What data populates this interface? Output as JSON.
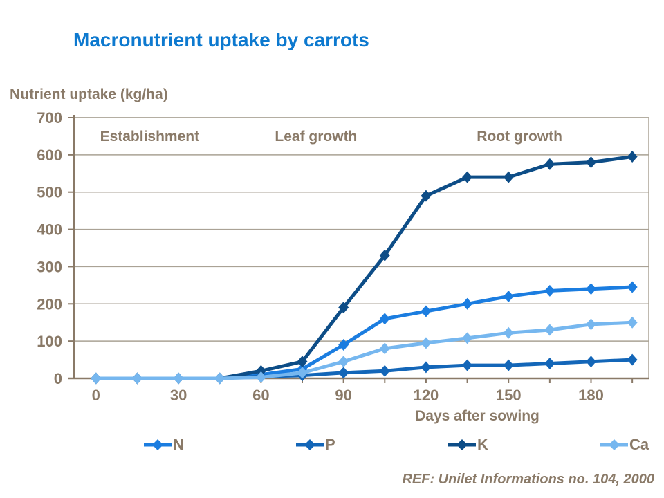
{
  "page": {
    "title": "Macronutrient uptake by carrots",
    "reference": "REF: Unilet Informations no. 104, 2000"
  },
  "chart_data": {
    "type": "line",
    "title": "Macronutrient uptake by carrots",
    "y_axis_title": "Nutrient uptake (kg/ha)",
    "x_axis_title": "Days after sowing",
    "x": [
      0,
      15,
      30,
      45,
      60,
      75,
      90,
      105,
      120,
      135,
      150,
      165,
      180,
      195
    ],
    "series": [
      {
        "name": "N",
        "color": "#1b7de0",
        "values": [
          0,
          0,
          0,
          0,
          10,
          25,
          90,
          160,
          180,
          200,
          220,
          235,
          240,
          245
        ]
      },
      {
        "name": "P",
        "color": "#1366b8",
        "values": [
          0,
          0,
          0,
          0,
          5,
          8,
          15,
          20,
          30,
          35,
          35,
          40,
          45,
          50
        ]
      },
      {
        "name": "K",
        "color": "#0d4d87",
        "values": [
          0,
          0,
          0,
          0,
          20,
          45,
          190,
          330,
          490,
          540,
          540,
          575,
          580,
          595
        ]
      },
      {
        "name": "Ca",
        "color": "#76b7ef",
        "values": [
          0,
          0,
          0,
          0,
          3,
          15,
          45,
          80,
          95,
          108,
          122,
          130,
          145,
          150
        ]
      }
    ],
    "ylim": [
      0,
      700
    ],
    "yticks": [
      0,
      100,
      200,
      300,
      400,
      500,
      600,
      700
    ],
    "xtick_labels": [
      0,
      30,
      60,
      90,
      120,
      150,
      180
    ],
    "xtick_minor_step": 15,
    "xlim": [
      -8,
      201
    ],
    "grid": "horizontal",
    "legend_position": "bottom",
    "legend_order": [
      "N",
      "P",
      "K",
      "Ca"
    ],
    "annotations": [
      {
        "text": "Establishment",
        "x_day": 19.5
      },
      {
        "text": "Leaf growth",
        "x_day": 80
      },
      {
        "text": "Root growth",
        "x_day": 154
      }
    ],
    "colors": {
      "title": "#0d79cf",
      "axis": "#8a7a68",
      "grid": "#aaa295",
      "text": "#8a7a68"
    }
  }
}
